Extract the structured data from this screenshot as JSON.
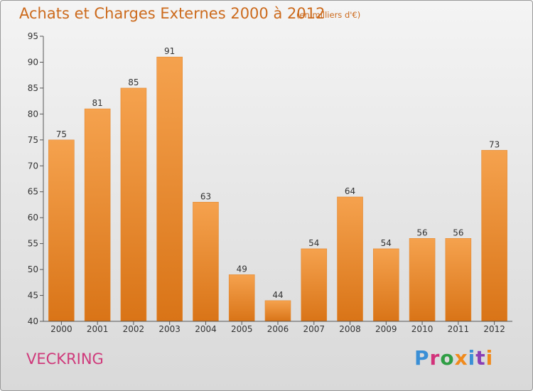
{
  "chart_data": {
    "type": "bar",
    "title": "Achats et Charges Externes 2000 à 2012",
    "subtitle": "(en milliers d'€)",
    "categories": [
      "2000",
      "2001",
      "2002",
      "2003",
      "2004",
      "2005",
      "2006",
      "2007",
      "2008",
      "2009",
      "2010",
      "2011",
      "2012"
    ],
    "values": [
      75,
      81,
      85,
      91,
      63,
      49,
      44,
      54,
      64,
      54,
      56,
      56,
      73
    ],
    "ylim": [
      40,
      95
    ],
    "yticks": [
      40,
      45,
      50,
      55,
      60,
      65,
      70,
      75,
      80,
      85,
      90,
      95
    ],
    "grid": false,
    "bar_color_top": "#f5a24e",
    "bar_color_bottom": "#d97417"
  },
  "footer": {
    "place": "VECKRING",
    "brand": "Proxiti",
    "brand_colors": [
      "#3a8fd6",
      "#d2327a",
      "#2f9e44",
      "#f08a1c",
      "#3a8fd6",
      "#8b3fb5",
      "#f08a1c"
    ]
  }
}
